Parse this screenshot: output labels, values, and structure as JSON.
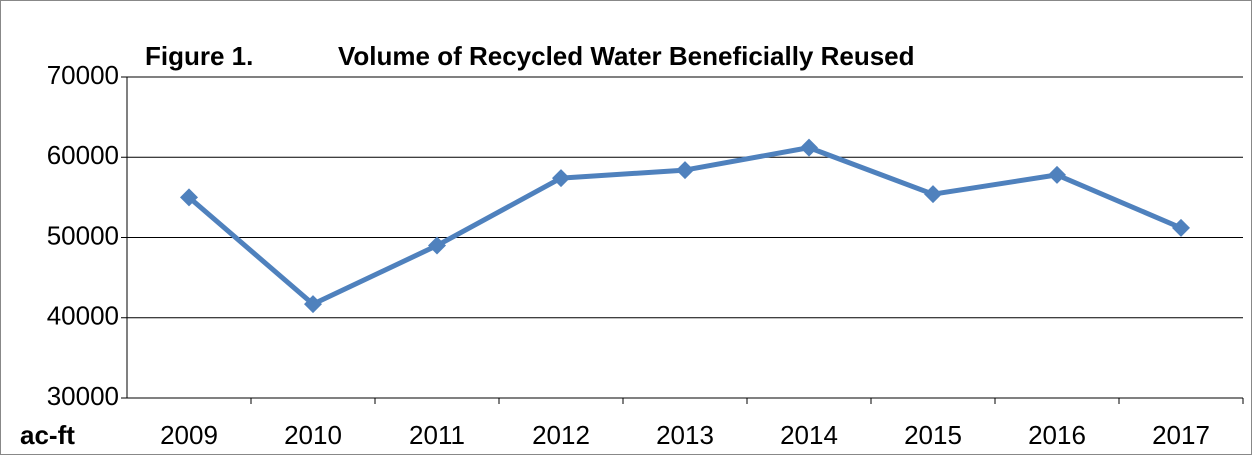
{
  "chart_data": {
    "type": "line",
    "figure_label": "Figure 1.",
    "title": "Volume of Recycled Water Beneficially Reused",
    "y_label": "ac-ft",
    "categories": [
      "2009",
      "2010",
      "2011",
      "2012",
      "2013",
      "2014",
      "2015",
      "2016",
      "2017"
    ],
    "series": [
      {
        "color": "#4f81bd",
        "values": [
          55000,
          41700,
          49000,
          57400,
          58400,
          61200,
          55400,
          57800,
          51200
        ]
      }
    ],
    "ylim": [
      30000,
      70000
    ],
    "yticks": [
      30000,
      40000,
      50000,
      60000,
      70000
    ],
    "grid": true
  }
}
